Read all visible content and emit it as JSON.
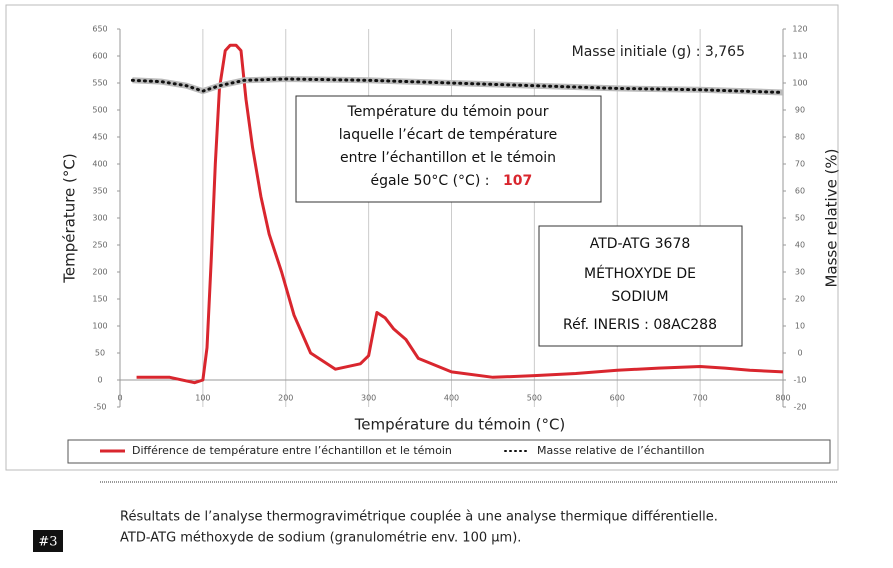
{
  "chart_data": {
    "type": "line",
    "x_label": "Température du témoin (°C)",
    "y_label": "Température (°C)",
    "y2_label": "Masse relative (%)",
    "xlim": [
      0,
      800
    ],
    "xticks": [
      0,
      100,
      200,
      300,
      400,
      500,
      600,
      700,
      800
    ],
    "ylim": [
      -50,
      650
    ],
    "yticks": [
      -50,
      0,
      50,
      100,
      150,
      200,
      250,
      300,
      350,
      400,
      450,
      500,
      550,
      600,
      650
    ],
    "y2lim": [
      -20,
      120
    ],
    "y2ticks": [
      -20,
      -10,
      0,
      10,
      20,
      30,
      40,
      50,
      60,
      70,
      80,
      90,
      100,
      110,
      120
    ],
    "grid": true,
    "legend": "bottom",
    "series": [
      {
        "name": "Différence de température entre l’échantillon et le témoin",
        "color": "#d9262e",
        "style": "solid",
        "x": [
          20,
          60,
          90,
          100,
          105,
          110,
          115,
          120,
          127,
          133,
          140,
          146,
          152,
          160,
          170,
          180,
          195,
          210,
          230,
          260,
          290,
          300,
          310,
          320,
          330,
          345,
          360,
          400,
          450,
          500,
          550,
          600,
          650,
          700,
          730,
          760,
          800
        ],
        "values": [
          5,
          5,
          -5,
          0,
          60,
          220,
          400,
          540,
          610,
          620,
          620,
          610,
          520,
          430,
          340,
          270,
          200,
          120,
          50,
          20,
          30,
          45,
          125,
          115,
          95,
          75,
          40,
          15,
          5,
          8,
          12,
          18,
          22,
          25,
          22,
          18,
          15
        ]
      },
      {
        "name": "Masse relative de l’échantillon",
        "color": "#111111",
        "style": "dotted",
        "axis": "y2",
        "x": [
          15,
          50,
          80,
          100,
          120,
          150,
          200,
          300,
          400,
          500,
          600,
          700,
          800
        ],
        "values": [
          101,
          100.5,
          99,
          97,
          99,
          101,
          101.5,
          101,
          100,
          99,
          98,
          97.5,
          96.5
        ]
      }
    ],
    "annotations": {
      "mass": "Masse initiale (g) : 3,765",
      "threshold": {
        "lines": [
          "Température du témoin pour",
          "laquelle l’écart de température",
          "entre l’échantillon et le témoin",
          "égale 50°C (°C) :"
        ],
        "value": 107
      },
      "sample": [
        "ATD-ATG 3678",
        "MÉTHOXYDE DE",
        "SODIUM",
        "Réf. INERIS : 08AC288"
      ]
    }
  },
  "caption": {
    "number": "#3",
    "lines": [
      "Résultats de l’analyse thermogravimétrique couplée à une analyse thermique différentielle.",
      "ATD-ATG méthoxyde de sodium (granulométrie env. 100 µm)."
    ]
  }
}
